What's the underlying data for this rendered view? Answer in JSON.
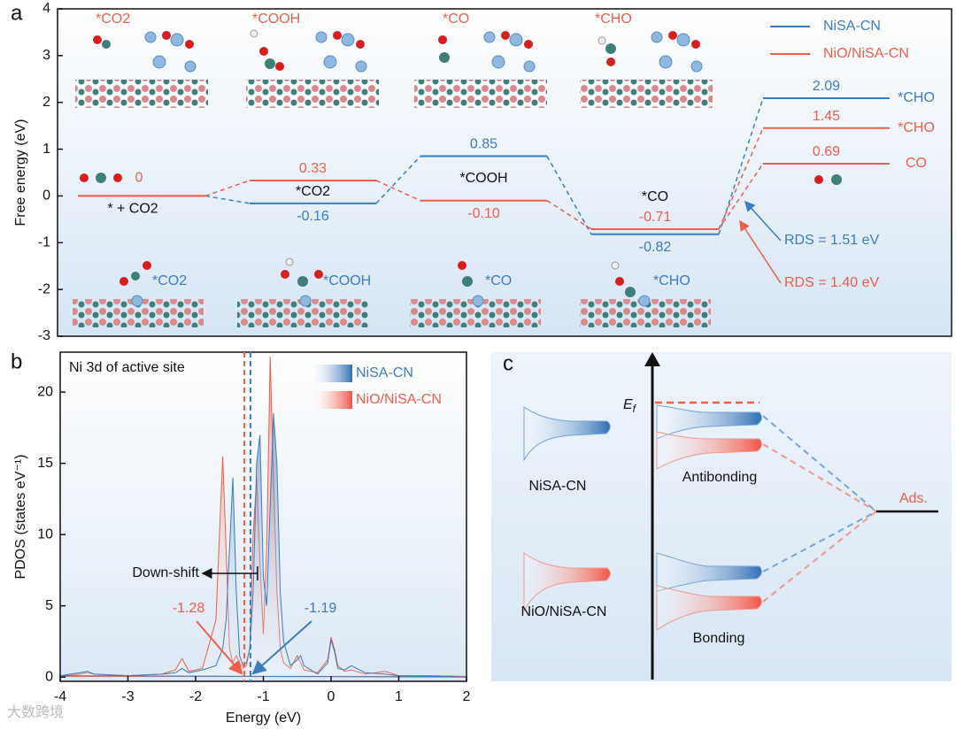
{
  "chart_data": [
    {
      "type": "energy-levels",
      "label": "a",
      "ylabel": "Free energy (eV)",
      "ylim": [
        -3,
        4
      ],
      "yticks": [
        -3,
        -2,
        -1,
        0,
        1,
        2,
        3,
        4
      ],
      "categories": [
        "*CO2",
        "*COOH",
        "*CO",
        "*CHO"
      ],
      "initial": {
        "value": 0,
        "label": "* + CO2"
      },
      "series": [
        {
          "name": "NiSA-CN",
          "color": "#3b7dbf",
          "values": [
            -0.16,
            0.85,
            -0.82,
            2.09
          ],
          "rds_label": "RDS = 1.51 eV"
        },
        {
          "name": "NiO/NiSA-CN",
          "color": "#ec5f4d",
          "values": [
            0.33,
            -0.1,
            -0.71,
            1.45
          ],
          "value_labels": [
            "0.33",
            "-0.10",
            "-0.71",
            "1.45"
          ],
          "rds_label": "RDS = 1.40 eV",
          "product": {
            "label": "CO",
            "value": 0.69
          }
        }
      ]
    },
    {
      "type": "area",
      "label": "b",
      "title": "Ni 3d of active site",
      "xlabel": "Energy (eV)",
      "ylabel": "PDOS (states eV⁻¹)",
      "xlim": [
        -4,
        2
      ],
      "ylim": [
        -0.3,
        22.8
      ],
      "xticks": [
        -4,
        -3,
        -2,
        -1,
        0,
        1,
        2
      ],
      "yticks": [
        0,
        5,
        10,
        15,
        20
      ],
      "annotation": "Down-shift",
      "x": [
        -4,
        -3.7,
        -3.6,
        -3.5,
        -3.0,
        -2.5,
        -2.3,
        -2.2,
        -2.1,
        -1.9,
        -1.7,
        -1.6,
        -1.55,
        -1.5,
        -1.45,
        -1.4,
        -1.35,
        -1.3,
        -1.25,
        -1.2,
        -1.15,
        -1.1,
        -1.05,
        -1.0,
        -0.95,
        -0.9,
        -0.85,
        -0.8,
        -0.75,
        -0.7,
        -0.6,
        -0.5,
        -0.45,
        -0.4,
        -0.2,
        -0.05,
        0,
        0.05,
        0.1,
        0.2,
        0.3,
        0.5,
        0.8,
        1.0,
        1.5,
        2
      ],
      "series": [
        {
          "name": "NiSA-CN",
          "color": "#3b7dbf",
          "d_band_center": -1.19,
          "values": [
            0.1,
            0.3,
            0.4,
            0.2,
            0.1,
            0.2,
            0.3,
            0.6,
            0.3,
            0.5,
            0.8,
            2,
            4,
            9,
            14,
            6,
            1.5,
            0.8,
            1,
            2,
            6,
            15,
            17,
            7,
            5,
            12,
            18.5,
            15,
            6,
            2.5,
            0.8,
            1.2,
            1.5,
            0.8,
            0.2,
            1,
            2.6,
            1.8,
            0.6,
            0.5,
            0.8,
            0.3,
            0.2,
            0.1,
            0.05,
            0
          ]
        },
        {
          "name": "NiO/NiSA-CN",
          "color": "#ec5f4d",
          "d_band_center": -1.28,
          "values": [
            0.05,
            0.2,
            0.3,
            0.2,
            0.1,
            0.2,
            0.5,
            1.3,
            0.4,
            0.6,
            4,
            15.5,
            9,
            2,
            1,
            1.5,
            1,
            0.6,
            0.8,
            2,
            10,
            14,
            8,
            3,
            9,
            22.5,
            14,
            6,
            2,
            1,
            0.6,
            1.5,
            1,
            0.5,
            0.3,
            1.2,
            2.8,
            2,
            0.8,
            0.4,
            0.5,
            0.2,
            0.4,
            0.1,
            0.1,
            0.05
          ]
        }
      ]
    }
  ],
  "diagram": {
    "label": "c",
    "fermi": {
      "symbol": "E",
      "subscript": "f"
    },
    "bands": [
      "NiSA-CN",
      "NiO/NiSA-CN"
    ],
    "orbitals": [
      "Antibonding",
      "Bonding"
    ],
    "adsorbate": "Ads."
  },
  "watermark": "大数跨境"
}
